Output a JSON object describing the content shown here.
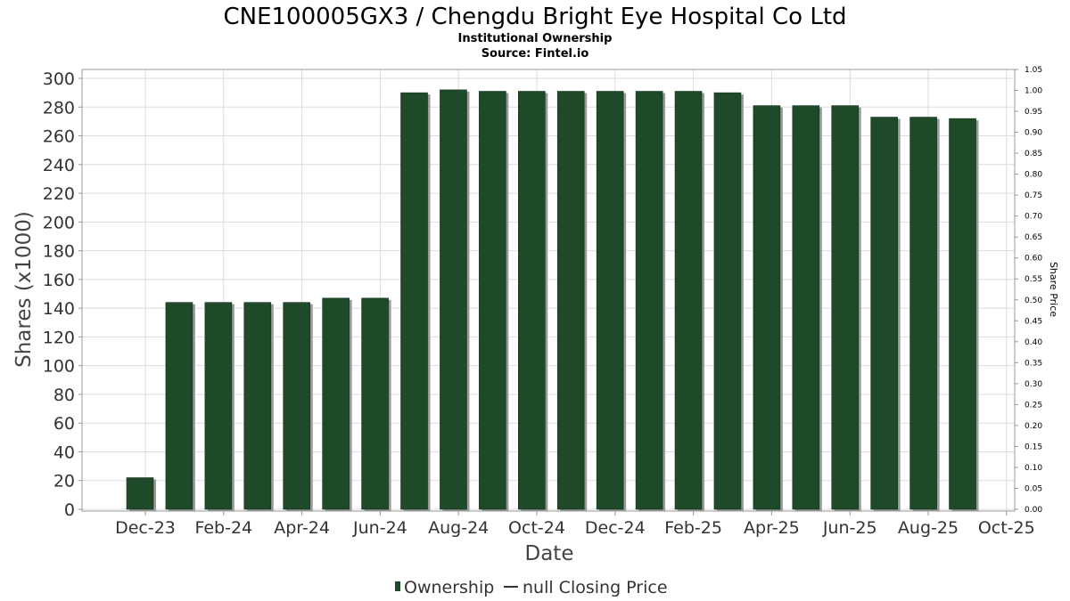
{
  "chart_data": {
    "type": "bar",
    "title": "CNE100005GX3 / Chengdu Bright Eye Hospital Co Ltd",
    "subtitle_1": "Institutional Ownership",
    "subtitle_2": "Source: Fintel.io",
    "xlabel": "Date",
    "ylabel": "Shares (x1000)",
    "y2label": "Share Price",
    "ylim": [
      0,
      300
    ],
    "y2lim": [
      0,
      1.05
    ],
    "grid": true,
    "legend_position": "bottom",
    "x_tick_labels": [
      "Dec-23",
      "Feb-24",
      "Apr-24",
      "Jun-24",
      "Aug-24",
      "Oct-24",
      "Dec-24",
      "Feb-25",
      "Apr-25",
      "Jun-25",
      "Aug-25",
      "Oct-25"
    ],
    "y_ticks": [
      0,
      20,
      40,
      60,
      80,
      100,
      120,
      140,
      160,
      180,
      200,
      220,
      240,
      260,
      280,
      300
    ],
    "y2_ticks": [
      "0.00",
      "0.05",
      "0.10",
      "0.15",
      "0.20",
      "0.25",
      "0.30",
      "0.35",
      "0.40",
      "0.45",
      "0.50",
      "0.55",
      "0.60",
      "0.65",
      "0.70",
      "0.75",
      "0.80",
      "0.85",
      "0.90",
      "0.95",
      "1.00",
      "1.05"
    ],
    "series": [
      {
        "name": "Ownership",
        "color": "#1f4a2a",
        "values": [
          22,
          144,
          144,
          144,
          144,
          147,
          147,
          290,
          292,
          291,
          291,
          291,
          291,
          291,
          291,
          290,
          281,
          281,
          281,
          273,
          273,
          272
        ]
      },
      {
        "name": "null Closing Price",
        "color": "#333333",
        "values": []
      }
    ]
  }
}
